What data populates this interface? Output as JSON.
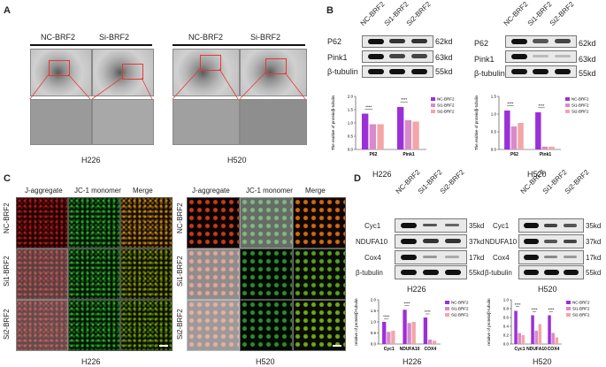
{
  "panels": {
    "A": {
      "label": "A",
      "col_labels": [
        "NC-BRF2",
        "Si-BRF2",
        "NC-BRF2",
        "Si-BRF2"
      ],
      "cell_lines": [
        "H226",
        "H520"
      ]
    },
    "B": {
      "label": "B",
      "lane_labels": [
        "NC-BRF2",
        "Si1-BRF2",
        "Si2-BRF2"
      ],
      "proteins": [
        "P62",
        "Pink1",
        "β-tubulin"
      ],
      "sizes": [
        "62kd",
        "63kd",
        "55kd"
      ],
      "cell_lines": [
        "H226",
        "H520"
      ],
      "sig": "****"
    },
    "C": {
      "label": "C",
      "col_labels": [
        "J-aggregate",
        "JC-1 monomer",
        "Merge"
      ],
      "row_labels": [
        "NC-BRF2",
        "Si1-BRF2",
        "Si2-BRF2"
      ],
      "cell_lines": [
        "H226",
        "H520"
      ]
    },
    "D": {
      "label": "D",
      "lane_labels": [
        "NC-BRF2",
        "Si1-BRF2",
        "Si2-BRF2"
      ],
      "proteins": [
        "Cyc1",
        "NDUFA10",
        "Cox4",
        "β-tubulin"
      ],
      "sizes": [
        "35kd",
        "37kd",
        "17kd",
        "55kd"
      ],
      "cell_lines": [
        "H226",
        "H520"
      ],
      "sig": "****"
    }
  },
  "colors": {
    "nc": "#9b30d9",
    "si1": "#d98ac9",
    "si2": "#f2a6a6",
    "red_box": "#e53935"
  },
  "chart_data": [
    {
      "type": "bar",
      "panel": "B",
      "cell_line": "H226",
      "ylabel": "The realtive of protein/β-tubulin",
      "categories": [
        "P62",
        "Pink1"
      ],
      "ylim": [
        0,
        2.0
      ],
      "yticks": [
        "0.0",
        "0.5",
        "1.0",
        "1.5",
        "2.0"
      ],
      "series": [
        {
          "name": "NC-BRF2",
          "values": [
            1.35,
            1.6
          ]
        },
        {
          "name": "Si1-BRF2",
          "values": [
            0.95,
            1.1
          ]
        },
        {
          "name": "Si2-BRF2",
          "values": [
            0.95,
            1.05
          ]
        }
      ]
    },
    {
      "type": "bar",
      "panel": "B",
      "cell_line": "H520",
      "ylabel": "The realtive of protein/β-tubulin",
      "categories": [
        "P62",
        "Pink1"
      ],
      "ylim": [
        0,
        1.5
      ],
      "yticks": [
        "0.0",
        "0.5",
        "1.0",
        "1.5"
      ],
      "series": [
        {
          "name": "NC-BRF2",
          "values": [
            1.1,
            1.05
          ]
        },
        {
          "name": "Si1-BRF2",
          "values": [
            0.65,
            0.08
          ]
        },
        {
          "name": "Si2-BRF2",
          "values": [
            0.75,
            0.08
          ]
        }
      ]
    },
    {
      "type": "bar",
      "panel": "D",
      "cell_line": "H226",
      "ylabel": "relative of protein/β-tubulin",
      "categories": [
        "Cyc1",
        "NDUFA10",
        "COX4"
      ],
      "ylim": [
        0,
        2.0
      ],
      "yticks": [
        "0.0",
        "0.5",
        "1.0",
        "1.5",
        "2.0"
      ],
      "series": [
        {
          "name": "NC-BRF2",
          "values": [
            1.0,
            1.55,
            1.2
          ]
        },
        {
          "name": "Si1-BRF2",
          "values": [
            0.55,
            0.95,
            0.2
          ]
        },
        {
          "name": "Si2-BRF2",
          "values": [
            0.6,
            1.0,
            0.15
          ]
        }
      ]
    },
    {
      "type": "bar",
      "panel": "D",
      "cell_line": "H520",
      "ylabel": "relative of protein/β-tubulin",
      "categories": [
        "Cyc1",
        "NDUFA10",
        "COX4"
      ],
      "ylim": [
        0,
        1.0
      ],
      "yticks": [
        "0.0",
        "0.2",
        "0.4",
        "0.6",
        "0.8",
        "1.0"
      ],
      "series": [
        {
          "name": "NC-BRF2",
          "values": [
            0.75,
            0.65,
            0.65
          ]
        },
        {
          "name": "Si1-BRF2",
          "values": [
            0.25,
            0.3,
            0.25
          ]
        },
        {
          "name": "Si2-BRF2",
          "values": [
            0.2,
            0.45,
            0.15
          ]
        }
      ]
    }
  ]
}
